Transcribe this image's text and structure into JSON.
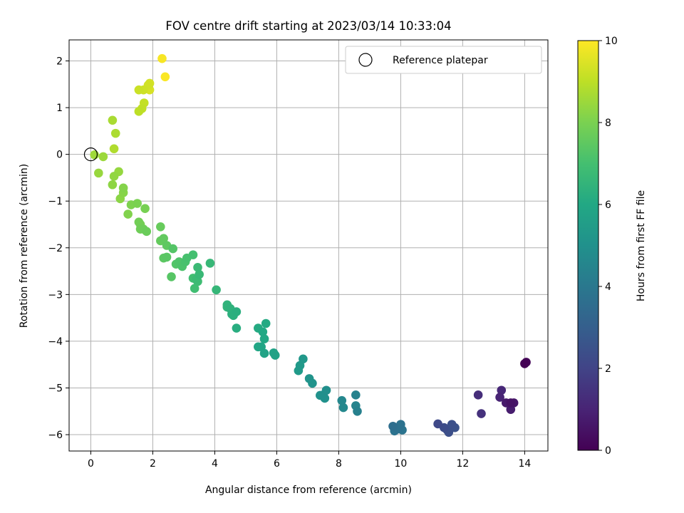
{
  "chart_data": {
    "type": "scatter",
    "title": "FOV centre drift starting at 2023/03/14 10:33:04",
    "xlabel": "Angular distance from reference (arcmin)",
    "ylabel": "Rotation from reference (arcmin)",
    "xlim": [
      -0.7,
      14.75
    ],
    "ylim": [
      -6.35,
      2.45
    ],
    "xticks": [
      0,
      2,
      4,
      6,
      8,
      10,
      12,
      14
    ],
    "yticks": [
      -6,
      -5,
      -4,
      -3,
      -2,
      -1,
      0,
      1,
      2
    ],
    "grid": true,
    "legend": {
      "position": "top-right",
      "entries": [
        "Reference platepar"
      ]
    },
    "reference_point": {
      "x": 0,
      "y": 0
    },
    "colorbar": {
      "label": "Hours from first FF file",
      "range": [
        0,
        10
      ],
      "ticks": [
        0,
        2,
        4,
        6,
        8,
        10
      ],
      "colormap": "viridis"
    },
    "points": [
      {
        "x": 14.0,
        "y": -4.48,
        "c": 0.0
      },
      {
        "x": 14.05,
        "y": -4.45,
        "c": 0.1
      },
      {
        "x": 13.55,
        "y": -5.32,
        "c": 0.5
      },
      {
        "x": 13.65,
        "y": -5.32,
        "c": 0.6
      },
      {
        "x": 13.4,
        "y": -5.32,
        "c": 0.7
      },
      {
        "x": 13.55,
        "y": -5.46,
        "c": 0.8
      },
      {
        "x": 13.2,
        "y": -5.2,
        "c": 1.0
      },
      {
        "x": 13.25,
        "y": -5.05,
        "c": 1.1
      },
      {
        "x": 12.5,
        "y": -5.15,
        "c": 1.3
      },
      {
        "x": 12.6,
        "y": -5.55,
        "c": 1.4
      },
      {
        "x": 11.2,
        "y": -5.77,
        "c": 2.2
      },
      {
        "x": 11.4,
        "y": -5.85,
        "c": 2.3
      },
      {
        "x": 11.55,
        "y": -5.95,
        "c": 2.4
      },
      {
        "x": 11.65,
        "y": -5.78,
        "c": 2.45
      },
      {
        "x": 11.75,
        "y": -5.85,
        "c": 2.5
      },
      {
        "x": 11.5,
        "y": -5.9,
        "c": 2.55
      },
      {
        "x": 9.75,
        "y": -5.82,
        "c": 3.6
      },
      {
        "x": 9.9,
        "y": -5.88,
        "c": 3.7
      },
      {
        "x": 10.0,
        "y": -5.78,
        "c": 3.75
      },
      {
        "x": 9.8,
        "y": -5.92,
        "c": 3.8
      },
      {
        "x": 10.05,
        "y": -5.9,
        "c": 3.85
      },
      {
        "x": 8.6,
        "y": -5.5,
        "c": 4.3
      },
      {
        "x": 8.55,
        "y": -5.15,
        "c": 4.4
      },
      {
        "x": 8.55,
        "y": -5.38,
        "c": 4.45
      },
      {
        "x": 8.1,
        "y": -5.27,
        "c": 4.6
      },
      {
        "x": 8.15,
        "y": -5.42,
        "c": 4.65
      },
      {
        "x": 7.6,
        "y": -5.05,
        "c": 4.9
      },
      {
        "x": 7.5,
        "y": -5.15,
        "c": 4.95
      },
      {
        "x": 7.55,
        "y": -5.22,
        "c": 5.0
      },
      {
        "x": 7.4,
        "y": -5.16,
        "c": 5.05
      },
      {
        "x": 7.15,
        "y": -4.9,
        "c": 5.1
      },
      {
        "x": 7.05,
        "y": -4.8,
        "c": 5.15
      },
      {
        "x": 6.85,
        "y": -4.38,
        "c": 5.3
      },
      {
        "x": 6.75,
        "y": -4.52,
        "c": 5.35
      },
      {
        "x": 6.7,
        "y": -4.63,
        "c": 5.4
      },
      {
        "x": 5.95,
        "y": -4.3,
        "c": 5.7
      },
      {
        "x": 5.9,
        "y": -4.25,
        "c": 5.75
      },
      {
        "x": 5.6,
        "y": -4.26,
        "c": 5.8
      },
      {
        "x": 5.5,
        "y": -4.12,
        "c": 5.85
      },
      {
        "x": 5.4,
        "y": -4.12,
        "c": 5.9
      },
      {
        "x": 5.6,
        "y": -3.95,
        "c": 5.95
      },
      {
        "x": 5.55,
        "y": -3.8,
        "c": 6.0
      },
      {
        "x": 5.65,
        "y": -3.62,
        "c": 6.05
      },
      {
        "x": 5.4,
        "y": -3.72,
        "c": 6.1
      },
      {
        "x": 4.7,
        "y": -3.72,
        "c": 6.2
      },
      {
        "x": 4.7,
        "y": -3.37,
        "c": 6.25
      },
      {
        "x": 4.6,
        "y": -3.45,
        "c": 6.3
      },
      {
        "x": 4.55,
        "y": -3.42,
        "c": 6.35
      },
      {
        "x": 4.5,
        "y": -3.3,
        "c": 6.4
      },
      {
        "x": 4.4,
        "y": -3.22,
        "c": 6.45
      },
      {
        "x": 4.4,
        "y": -3.27,
        "c": 6.5
      },
      {
        "x": 4.05,
        "y": -2.9,
        "c": 6.6
      },
      {
        "x": 3.85,
        "y": -2.33,
        "c": 6.65
      },
      {
        "x": 3.5,
        "y": -2.57,
        "c": 6.7
      },
      {
        "x": 3.45,
        "y": -2.42,
        "c": 6.75
      },
      {
        "x": 3.4,
        "y": -2.68,
        "c": 6.8
      },
      {
        "x": 3.45,
        "y": -2.72,
        "c": 6.85
      },
      {
        "x": 3.35,
        "y": -2.87,
        "c": 6.9
      },
      {
        "x": 3.3,
        "y": -2.65,
        "c": 6.95
      },
      {
        "x": 3.3,
        "y": -2.15,
        "c": 7.0
      },
      {
        "x": 3.1,
        "y": -2.22,
        "c": 7.05
      },
      {
        "x": 3.05,
        "y": -2.3,
        "c": 7.1
      },
      {
        "x": 2.95,
        "y": -2.4,
        "c": 7.15
      },
      {
        "x": 2.85,
        "y": -2.3,
        "c": 7.2
      },
      {
        "x": 2.75,
        "y": -2.35,
        "c": 7.25
      },
      {
        "x": 2.65,
        "y": -2.02,
        "c": 7.3
      },
      {
        "x": 2.6,
        "y": -2.62,
        "c": 7.35
      },
      {
        "x": 2.45,
        "y": -2.2,
        "c": 7.4
      },
      {
        "x": 2.35,
        "y": -2.22,
        "c": 7.45
      },
      {
        "x": 2.45,
        "y": -1.95,
        "c": 7.5
      },
      {
        "x": 2.35,
        "y": -1.8,
        "c": 7.55
      },
      {
        "x": 2.25,
        "y": -1.85,
        "c": 7.6
      },
      {
        "x": 2.25,
        "y": -1.55,
        "c": 7.65
      },
      {
        "x": 1.8,
        "y": -1.65,
        "c": 7.7
      },
      {
        "x": 1.7,
        "y": -1.6,
        "c": 7.75
      },
      {
        "x": 1.6,
        "y": -1.6,
        "c": 7.8
      },
      {
        "x": 1.55,
        "y": -1.45,
        "c": 7.85
      },
      {
        "x": 1.6,
        "y": -1.5,
        "c": 7.9
      },
      {
        "x": 1.75,
        "y": -1.16,
        "c": 7.95
      },
      {
        "x": 1.5,
        "y": -1.05,
        "c": 8.0
      },
      {
        "x": 1.3,
        "y": -1.08,
        "c": 8.05
      },
      {
        "x": 1.2,
        "y": -1.28,
        "c": 8.1
      },
      {
        "x": 1.05,
        "y": -0.72,
        "c": 8.15
      },
      {
        "x": 1.05,
        "y": -0.82,
        "c": 8.2
      },
      {
        "x": 0.95,
        "y": -0.95,
        "c": 8.25
      },
      {
        "x": 0.7,
        "y": -0.65,
        "c": 8.3
      },
      {
        "x": 0.75,
        "y": -0.47,
        "c": 8.35
      },
      {
        "x": 0.9,
        "y": -0.37,
        "c": 8.4
      },
      {
        "x": 0.25,
        "y": -0.4,
        "c": 8.45
      },
      {
        "x": 0.4,
        "y": -0.05,
        "c": 8.5
      },
      {
        "x": 0.12,
        "y": -0.01,
        "c": 8.55
      },
      {
        "x": 0.7,
        "y": 0.73,
        "c": 8.7
      },
      {
        "x": 0.8,
        "y": 0.45,
        "c": 8.75
      },
      {
        "x": 0.75,
        "y": 0.12,
        "c": 8.8
      },
      {
        "x": 1.55,
        "y": 0.92,
        "c": 9.0
      },
      {
        "x": 1.65,
        "y": 0.98,
        "c": 9.05
      },
      {
        "x": 1.72,
        "y": 1.1,
        "c": 9.1
      },
      {
        "x": 1.55,
        "y": 1.38,
        "c": 9.2
      },
      {
        "x": 1.7,
        "y": 1.38,
        "c": 9.25
      },
      {
        "x": 1.85,
        "y": 1.48,
        "c": 9.3
      },
      {
        "x": 1.9,
        "y": 1.52,
        "c": 9.35
      },
      {
        "x": 1.9,
        "y": 1.38,
        "c": 9.4
      },
      {
        "x": 2.3,
        "y": 2.05,
        "c": 9.9
      },
      {
        "x": 2.4,
        "y": 1.66,
        "c": 9.95
      }
    ]
  }
}
